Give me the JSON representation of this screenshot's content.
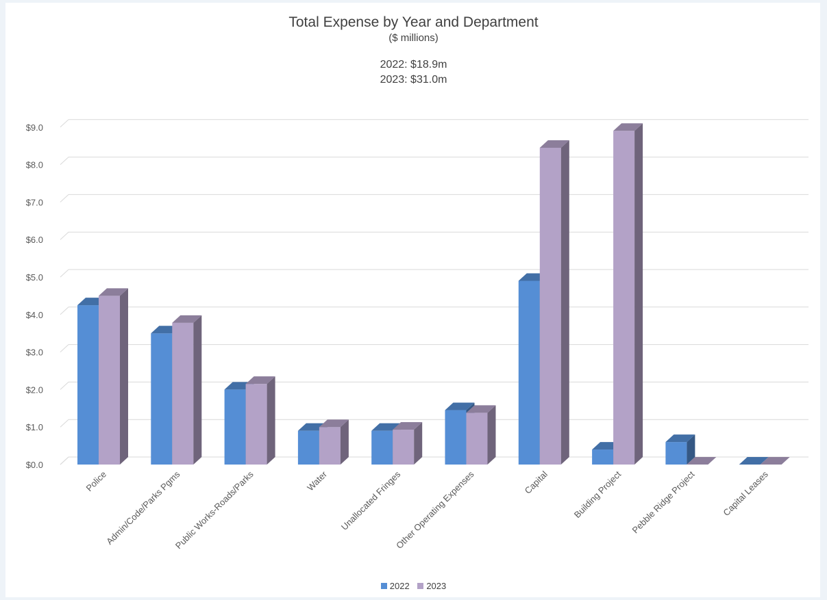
{
  "chart_data": {
    "type": "bar",
    "title": "Total Expense by Year and Department",
    "subtitle": "($ millions)",
    "annotations": [
      "2022: $18.9m",
      "2023: $31.0m"
    ],
    "categories": [
      "Police",
      "Admin/Code/Parks Pgms",
      "Public Works-Roads/Parks",
      "Water",
      "Unallocated Fringes",
      "Other Operating Expenses",
      "Capital",
      "Building Project",
      "Pebble Ridge Project",
      "Capital Leases"
    ],
    "series": [
      {
        "name": "2022",
        "color": "#558ed5",
        "values": [
          4.25,
          3.5,
          2.0,
          0.9,
          0.9,
          1.45,
          4.9,
          0.4,
          0.6,
          0.0
        ]
      },
      {
        "name": "2023",
        "color": "#b3a2c7",
        "values": [
          4.5,
          3.78,
          2.15,
          1.0,
          0.93,
          1.38,
          8.45,
          8.9,
          0.0,
          0.0
        ]
      }
    ],
    "yticks": [
      "$0.0",
      "$1.0",
      "$2.0",
      "$3.0",
      "$4.0",
      "$5.0",
      "$6.0",
      "$7.0",
      "$8.0",
      "$9.0"
    ],
    "ylim": [
      0,
      9
    ],
    "grid": true,
    "legend_position": "bottom"
  }
}
